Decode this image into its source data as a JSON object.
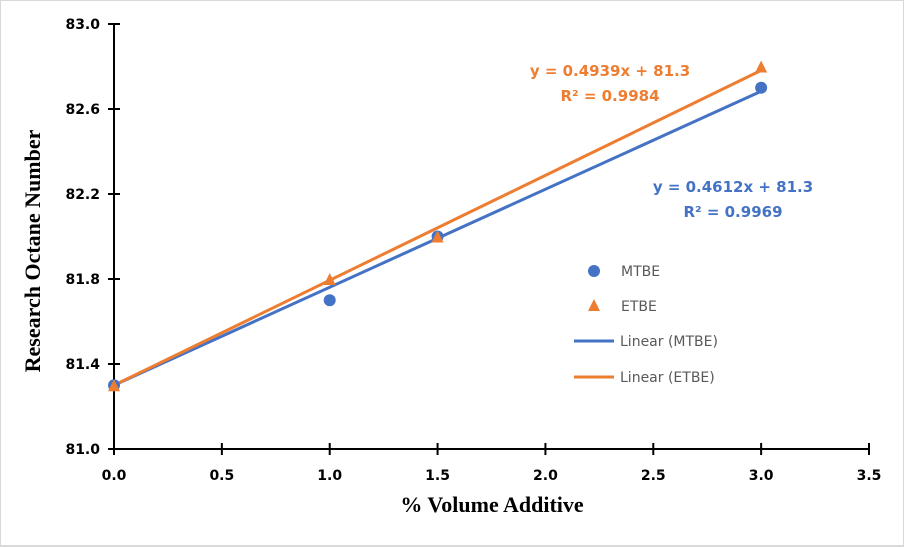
{
  "chart_data": {
    "type": "scatter",
    "title": "",
    "xlabel": "% Volume Additive",
    "ylabel": "Research Octane Number",
    "xlim": [
      0,
      3.5
    ],
    "ylim": [
      81.0,
      83.0
    ],
    "x_ticks": [
      "0.0",
      "0.5",
      "1.0",
      "1.5",
      "2.0",
      "2.5",
      "3.0",
      "3.5"
    ],
    "y_ticks": [
      "81.0",
      "81.4",
      "81.8",
      "82.2",
      "82.6",
      "83.0"
    ],
    "grid": false,
    "legend_position": "center-right",
    "series": [
      {
        "name": "MTBE",
        "marker": "circle",
        "color": "#4472C4",
        "x": [
          0,
          1,
          1.5,
          3
        ],
        "y": [
          81.3,
          81.7,
          82.0,
          82.7
        ]
      },
      {
        "name": "ETBE",
        "marker": "triangle",
        "color": "#ED7D31",
        "x": [
          0,
          1,
          1.5,
          3
        ],
        "y": [
          81.3,
          81.8,
          82.0,
          82.8
        ]
      }
    ],
    "trendlines": [
      {
        "name": "Linear (MTBE)",
        "color": "#4472C4",
        "slope": 0.4612,
        "intercept": 81.3,
        "x_range": [
          0,
          3
        ],
        "equation": "y = 0.4612x + 81.3",
        "r_squared": "R² = 0.9969"
      },
      {
        "name": "Linear (ETBE)",
        "color": "#ED7D31",
        "slope": 0.4939,
        "intercept": 81.3,
        "x_range": [
          0,
          3
        ],
        "equation": "y = 0.4939x + 81.3",
        "r_squared": "R² = 0.9984"
      }
    ],
    "legend": [
      "MTBE",
      "ETBE",
      "Linear (MTBE)",
      "Linear (ETBE)"
    ]
  }
}
